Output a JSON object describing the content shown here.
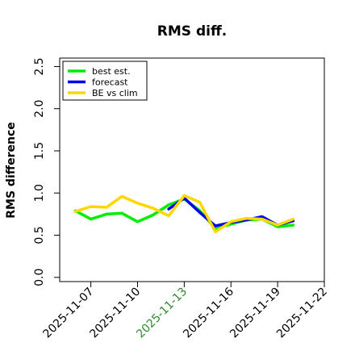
{
  "chart_data": {
    "type": "line",
    "title": "RMS diff.",
    "ylabel": "RMS difference",
    "xlabel": "",
    "x": [
      "2025-11-06",
      "2025-11-07",
      "2025-11-08",
      "2025-11-09",
      "2025-11-10",
      "2025-11-11",
      "2025-11-12",
      "2025-11-13",
      "2025-11-14",
      "2025-11-15",
      "2025-11-16",
      "2025-11-17",
      "2025-11-18",
      "2025-11-19",
      "2025-11-20"
    ],
    "xlim": [
      "2025-11-05",
      "2025-11-22"
    ],
    "x_ticks": [
      "2025-11-07",
      "2025-11-10",
      "2025-11-13",
      "2025-11-16",
      "2025-11-19",
      "2025-11-22"
    ],
    "x_tick_colors": [
      "#000000",
      "#000000",
      "#2e8b2e",
      "#000000",
      "#000000",
      "#000000"
    ],
    "y_ticks": [
      "0.0",
      "0.5",
      "1.0",
      "1.5",
      "2.0",
      "2.5"
    ],
    "ylim": [
      -0.05,
      2.6
    ],
    "grid": false,
    "legend_placement": "top-left",
    "series": [
      {
        "name": "best est.",
        "color": "#00ee00",
        "values": [
          0.79,
          0.69,
          0.75,
          0.76,
          0.66,
          0.74,
          0.86,
          0.93,
          0.79,
          0.58,
          0.63,
          0.68,
          0.69,
          0.6,
          0.62
        ]
      },
      {
        "name": "forecast",
        "color": "#0000ee",
        "values": [
          null,
          null,
          null,
          null,
          null,
          null,
          0.81,
          0.94,
          0.77,
          0.61,
          0.65,
          0.68,
          0.72,
          0.62,
          0.67
        ]
      },
      {
        "name": "BE vs clim",
        "color": "#ffd700",
        "values": [
          0.78,
          0.84,
          0.83,
          0.96,
          0.88,
          0.82,
          0.73,
          0.97,
          0.89,
          0.54,
          0.66,
          0.7,
          0.69,
          0.62,
          0.69
        ]
      }
    ]
  }
}
